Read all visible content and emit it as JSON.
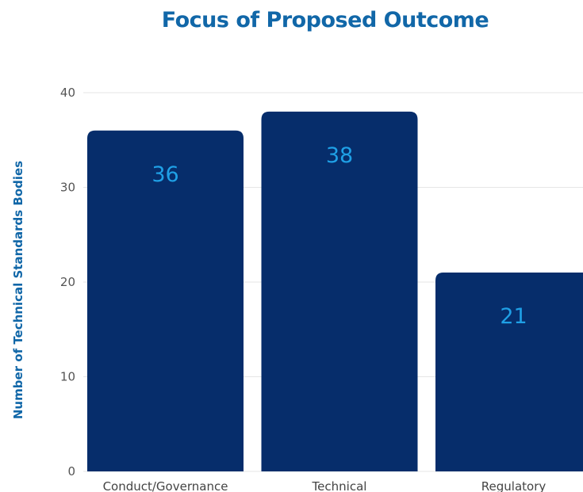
{
  "chart_data": {
    "type": "bar",
    "title": "Focus of Proposed Outcome",
    "xlabel": "",
    "ylabel": "Number of Technical Standards Bodies",
    "categories": [
      "Conduct/Governance",
      "Technical",
      "Regulatory"
    ],
    "values": [
      36,
      38,
      21
    ],
    "ylim": [
      0,
      40
    ],
    "yticks": [
      0,
      10,
      20,
      30,
      40
    ],
    "grid": true,
    "data_labels": true,
    "colors": {
      "bar": "#062d6b",
      "value_label": "#1fa0e6",
      "title": "#1167a8",
      "grid": "#e6e6e6"
    }
  }
}
